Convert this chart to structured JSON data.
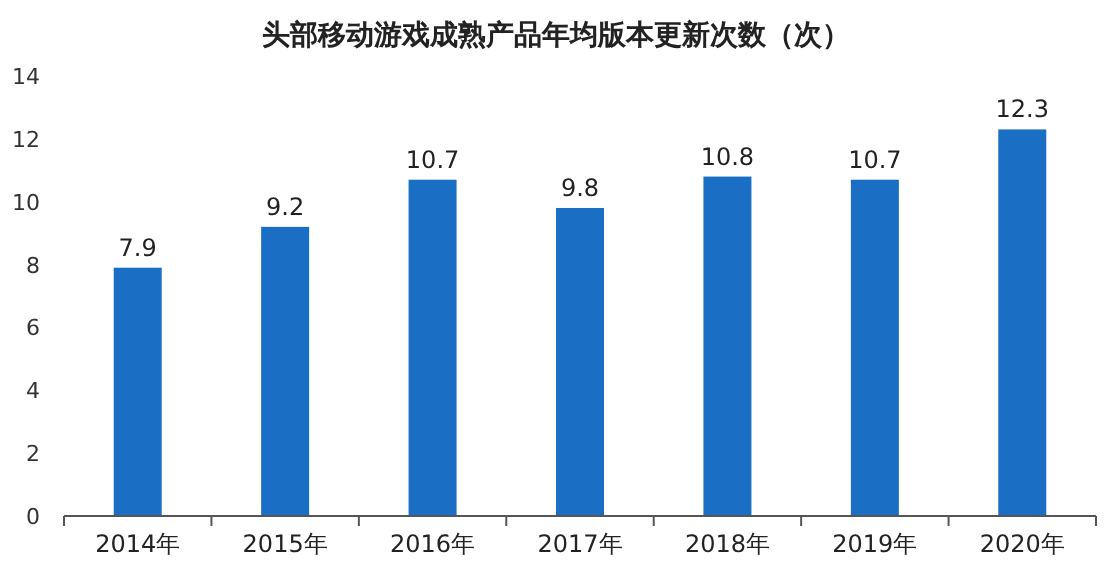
{
  "chart_data": {
    "type": "bar",
    "title": "头部移动游戏成熟产品年均版本更新次数（次）",
    "categories": [
      "2014年",
      "2015年",
      "2016年",
      "2017年",
      "2018年",
      "2019年",
      "2020年"
    ],
    "values": [
      7.9,
      9.2,
      10.7,
      9.8,
      10.8,
      10.7,
      12.3
    ],
    "color": "#1a6fc4",
    "ylim": [
      0,
      14
    ],
    "yticks": [
      0,
      2,
      4,
      6,
      8,
      10,
      12,
      14
    ],
    "grid": false,
    "data_labels": true
  }
}
